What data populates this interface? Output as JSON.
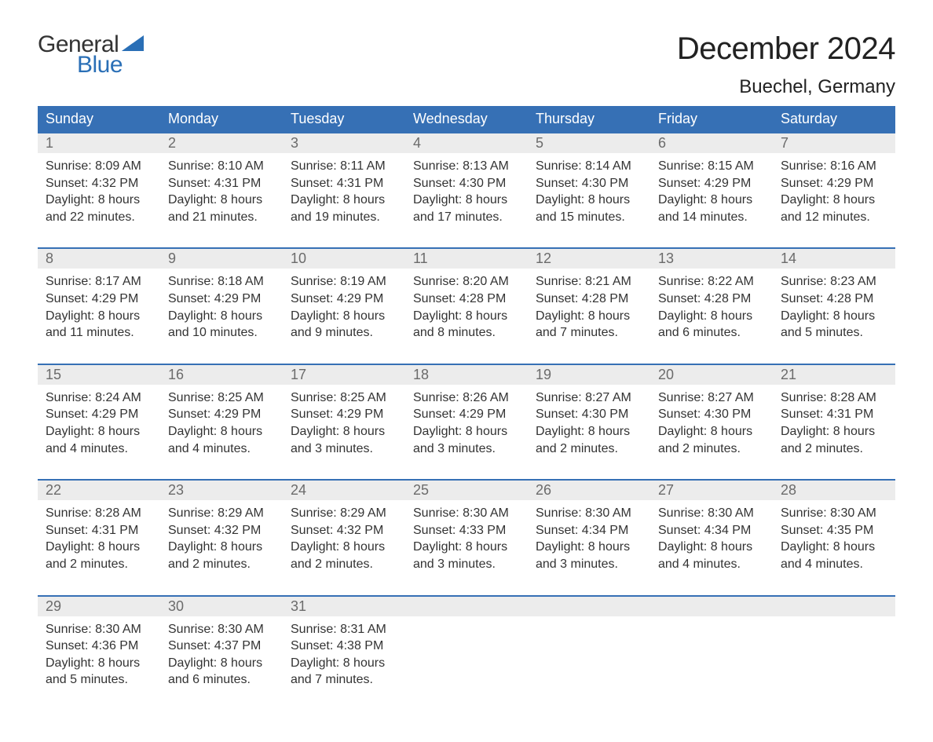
{
  "logo": {
    "general_text": "General",
    "blue_text": "Blue",
    "shape_color": "#2a6fb6",
    "general_color": "#333333",
    "blue_color": "#2a6fb6"
  },
  "header": {
    "month_title": "December 2024",
    "location": "Buechel, Germany"
  },
  "colors": {
    "header_bg": "#3670b5",
    "header_text": "#ffffff",
    "week_border": "#3670b5",
    "daynum_bg": "#ececec",
    "daynum_text": "#6b6b6b",
    "body_text": "#333333",
    "background": "#ffffff"
  },
  "typography": {
    "month_title_fontsize": 40,
    "location_fontsize": 24,
    "dayheader_fontsize": 18,
    "daynum_fontsize": 18,
    "cell_fontsize": 16
  },
  "day_names": [
    "Sunday",
    "Monday",
    "Tuesday",
    "Wednesday",
    "Thursday",
    "Friday",
    "Saturday"
  ],
  "weeks": [
    [
      {
        "num": "1",
        "sunrise": "Sunrise: 8:09 AM",
        "sunset": "Sunset: 4:32 PM",
        "dl1": "Daylight: 8 hours",
        "dl2": "and 22 minutes."
      },
      {
        "num": "2",
        "sunrise": "Sunrise: 8:10 AM",
        "sunset": "Sunset: 4:31 PM",
        "dl1": "Daylight: 8 hours",
        "dl2": "and 21 minutes."
      },
      {
        "num": "3",
        "sunrise": "Sunrise: 8:11 AM",
        "sunset": "Sunset: 4:31 PM",
        "dl1": "Daylight: 8 hours",
        "dl2": "and 19 minutes."
      },
      {
        "num": "4",
        "sunrise": "Sunrise: 8:13 AM",
        "sunset": "Sunset: 4:30 PM",
        "dl1": "Daylight: 8 hours",
        "dl2": "and 17 minutes."
      },
      {
        "num": "5",
        "sunrise": "Sunrise: 8:14 AM",
        "sunset": "Sunset: 4:30 PM",
        "dl1": "Daylight: 8 hours",
        "dl2": "and 15 minutes."
      },
      {
        "num": "6",
        "sunrise": "Sunrise: 8:15 AM",
        "sunset": "Sunset: 4:29 PM",
        "dl1": "Daylight: 8 hours",
        "dl2": "and 14 minutes."
      },
      {
        "num": "7",
        "sunrise": "Sunrise: 8:16 AM",
        "sunset": "Sunset: 4:29 PM",
        "dl1": "Daylight: 8 hours",
        "dl2": "and 12 minutes."
      }
    ],
    [
      {
        "num": "8",
        "sunrise": "Sunrise: 8:17 AM",
        "sunset": "Sunset: 4:29 PM",
        "dl1": "Daylight: 8 hours",
        "dl2": "and 11 minutes."
      },
      {
        "num": "9",
        "sunrise": "Sunrise: 8:18 AM",
        "sunset": "Sunset: 4:29 PM",
        "dl1": "Daylight: 8 hours",
        "dl2": "and 10 minutes."
      },
      {
        "num": "10",
        "sunrise": "Sunrise: 8:19 AM",
        "sunset": "Sunset: 4:29 PM",
        "dl1": "Daylight: 8 hours",
        "dl2": "and 9 minutes."
      },
      {
        "num": "11",
        "sunrise": "Sunrise: 8:20 AM",
        "sunset": "Sunset: 4:28 PM",
        "dl1": "Daylight: 8 hours",
        "dl2": "and 8 minutes."
      },
      {
        "num": "12",
        "sunrise": "Sunrise: 8:21 AM",
        "sunset": "Sunset: 4:28 PM",
        "dl1": "Daylight: 8 hours",
        "dl2": "and 7 minutes."
      },
      {
        "num": "13",
        "sunrise": "Sunrise: 8:22 AM",
        "sunset": "Sunset: 4:28 PM",
        "dl1": "Daylight: 8 hours",
        "dl2": "and 6 minutes."
      },
      {
        "num": "14",
        "sunrise": "Sunrise: 8:23 AM",
        "sunset": "Sunset: 4:28 PM",
        "dl1": "Daylight: 8 hours",
        "dl2": "and 5 minutes."
      }
    ],
    [
      {
        "num": "15",
        "sunrise": "Sunrise: 8:24 AM",
        "sunset": "Sunset: 4:29 PM",
        "dl1": "Daylight: 8 hours",
        "dl2": "and 4 minutes."
      },
      {
        "num": "16",
        "sunrise": "Sunrise: 8:25 AM",
        "sunset": "Sunset: 4:29 PM",
        "dl1": "Daylight: 8 hours",
        "dl2": "and 4 minutes."
      },
      {
        "num": "17",
        "sunrise": "Sunrise: 8:25 AM",
        "sunset": "Sunset: 4:29 PM",
        "dl1": "Daylight: 8 hours",
        "dl2": "and 3 minutes."
      },
      {
        "num": "18",
        "sunrise": "Sunrise: 8:26 AM",
        "sunset": "Sunset: 4:29 PM",
        "dl1": "Daylight: 8 hours",
        "dl2": "and 3 minutes."
      },
      {
        "num": "19",
        "sunrise": "Sunrise: 8:27 AM",
        "sunset": "Sunset: 4:30 PM",
        "dl1": "Daylight: 8 hours",
        "dl2": "and 2 minutes."
      },
      {
        "num": "20",
        "sunrise": "Sunrise: 8:27 AM",
        "sunset": "Sunset: 4:30 PM",
        "dl1": "Daylight: 8 hours",
        "dl2": "and 2 minutes."
      },
      {
        "num": "21",
        "sunrise": "Sunrise: 8:28 AM",
        "sunset": "Sunset: 4:31 PM",
        "dl1": "Daylight: 8 hours",
        "dl2": "and 2 minutes."
      }
    ],
    [
      {
        "num": "22",
        "sunrise": "Sunrise: 8:28 AM",
        "sunset": "Sunset: 4:31 PM",
        "dl1": "Daylight: 8 hours",
        "dl2": "and 2 minutes."
      },
      {
        "num": "23",
        "sunrise": "Sunrise: 8:29 AM",
        "sunset": "Sunset: 4:32 PM",
        "dl1": "Daylight: 8 hours",
        "dl2": "and 2 minutes."
      },
      {
        "num": "24",
        "sunrise": "Sunrise: 8:29 AM",
        "sunset": "Sunset: 4:32 PM",
        "dl1": "Daylight: 8 hours",
        "dl2": "and 2 minutes."
      },
      {
        "num": "25",
        "sunrise": "Sunrise: 8:30 AM",
        "sunset": "Sunset: 4:33 PM",
        "dl1": "Daylight: 8 hours",
        "dl2": "and 3 minutes."
      },
      {
        "num": "26",
        "sunrise": "Sunrise: 8:30 AM",
        "sunset": "Sunset: 4:34 PM",
        "dl1": "Daylight: 8 hours",
        "dl2": "and 3 minutes."
      },
      {
        "num": "27",
        "sunrise": "Sunrise: 8:30 AM",
        "sunset": "Sunset: 4:34 PM",
        "dl1": "Daylight: 8 hours",
        "dl2": "and 4 minutes."
      },
      {
        "num": "28",
        "sunrise": "Sunrise: 8:30 AM",
        "sunset": "Sunset: 4:35 PM",
        "dl1": "Daylight: 8 hours",
        "dl2": "and 4 minutes."
      }
    ],
    [
      {
        "num": "29",
        "sunrise": "Sunrise: 8:30 AM",
        "sunset": "Sunset: 4:36 PM",
        "dl1": "Daylight: 8 hours",
        "dl2": "and 5 minutes."
      },
      {
        "num": "30",
        "sunrise": "Sunrise: 8:30 AM",
        "sunset": "Sunset: 4:37 PM",
        "dl1": "Daylight: 8 hours",
        "dl2": "and 6 minutes."
      },
      {
        "num": "31",
        "sunrise": "Sunrise: 8:31 AM",
        "sunset": "Sunset: 4:38 PM",
        "dl1": "Daylight: 8 hours",
        "dl2": "and 7 minutes."
      },
      null,
      null,
      null,
      null
    ]
  ]
}
